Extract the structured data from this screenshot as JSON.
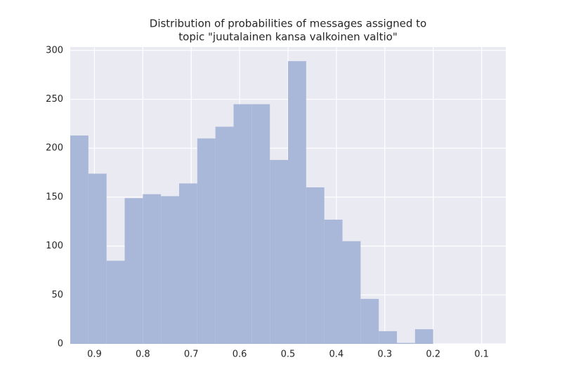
{
  "chart_data": {
    "type": "histogram",
    "title": [
      "Distribution of probabilities of messages assigned to",
      "topic \"juutalainen kansa valkoinen valtio\""
    ],
    "bins": [
      0.2,
      0.2375,
      0.275,
      0.3125,
      0.35,
      0.3875,
      0.425,
      0.4625,
      0.5,
      0.5375,
      0.575,
      0.6125,
      0.65,
      0.6875,
      0.725,
      0.7625,
      0.8,
      0.8375,
      0.875,
      0.9125,
      0.95
    ],
    "values": [
      15,
      1,
      13,
      46,
      105,
      127,
      160,
      289,
      188,
      245,
      245,
      222,
      210,
      164,
      151,
      153,
      149,
      85,
      174,
      213
    ],
    "color": "#a9b8d8",
    "xlim": [
      0.95,
      0.05
    ],
    "xticks": [
      0.9,
      0.8,
      0.7,
      0.6,
      0.5,
      0.4,
      0.3,
      0.2,
      0.1
    ],
    "ylim": [
      0,
      303.45
    ],
    "yticks": [
      0,
      50,
      100,
      150,
      200,
      250,
      300
    ],
    "grid": true
  }
}
